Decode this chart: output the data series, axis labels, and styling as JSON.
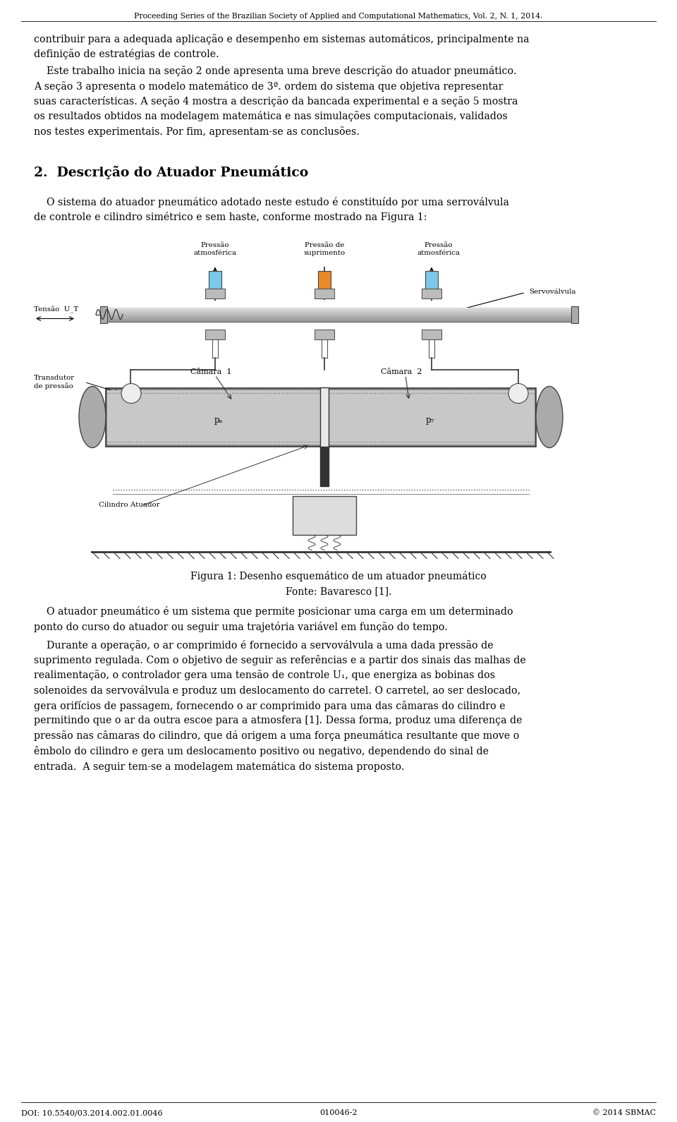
{
  "header": "Proceeding Series of the Brazilian Society of Applied and Computational Mathematics, Vol. 2, N. 1, 2014.",
  "footer_left": "DOI: 10.5540/03.2014.002.01.0046",
  "footer_center": "010046-2",
  "footer_right": "© 2014 SBMAC",
  "bg_color": "#ffffff",
  "p1_lines": [
    "contribuir para a adequada aplicação e desempenho em sistemas automáticos, principalmente na",
    "definição de estratégias de controle."
  ],
  "p2_lines": [
    "    Este trabalho inicia na seção 2 onde apresenta uma breve descrição do atuador pneumático.",
    "A seção 3 apresenta o modelo matemático de 3ª. ordem do sistema que objetiva representar",
    "suas características. A seção 4 mostra a descrição da bancada experimental e a seção 5 mostra",
    "os resultados obtidos na modelagem matemática e nas simulações computacionais, validados",
    "nos testes experimentais. Por fim, apresentam-se as conclusões."
  ],
  "section_title": "2.  Descrição do Atuador Pneumático",
  "p3_lines": [
    "    O sistema do atuador pneumático adotado neste estudo é constituído por uma serroválvula",
    "de controle e cilindro simétrico e sem haste, conforme mostrado na Figura 1:"
  ],
  "fig_caption1": "Figura 1: Desenho esquemático de um atuador pneumático",
  "fig_caption2": "Fonte: Bavaresco [1].",
  "p4_lines": [
    "    O atuador pneumático é um sistema que permite posicionar uma carga em um determinado",
    "ponto do curso do atuador ou seguir uma trajetória variável em função do tempo."
  ],
  "p5_lines": [
    "    Durante a operação, o ar comprimido é fornecido a servoválvula a uma dada pressão de",
    "suprimento regulada. Com o objetivo de seguir as referências e a partir dos sinais das malhas de",
    "realimentação, o controlador gera uma tensão de controle U₁, que energiza as bobinas dos",
    "solenoides da servoválvula e produz um deslocamento do carretel. O carretel, ao ser deslocado,",
    "gera orifícios de passagem, fornecendo o ar comprimido para uma das câmaras do cilindro e",
    "permitindo que o ar da outra escoe para a atmosfera [1]. Dessa forma, produz uma diferença de",
    "pressão nas câmaras do cilindro, que dá origem a uma força pneumática resultante que move o",
    "êmbolo do cilindro e gera um deslocamento positivo ou negativo, dependendo do sinal de",
    "entrada.  A seguir tem-se a modelagem matemática do sistema proposto."
  ]
}
